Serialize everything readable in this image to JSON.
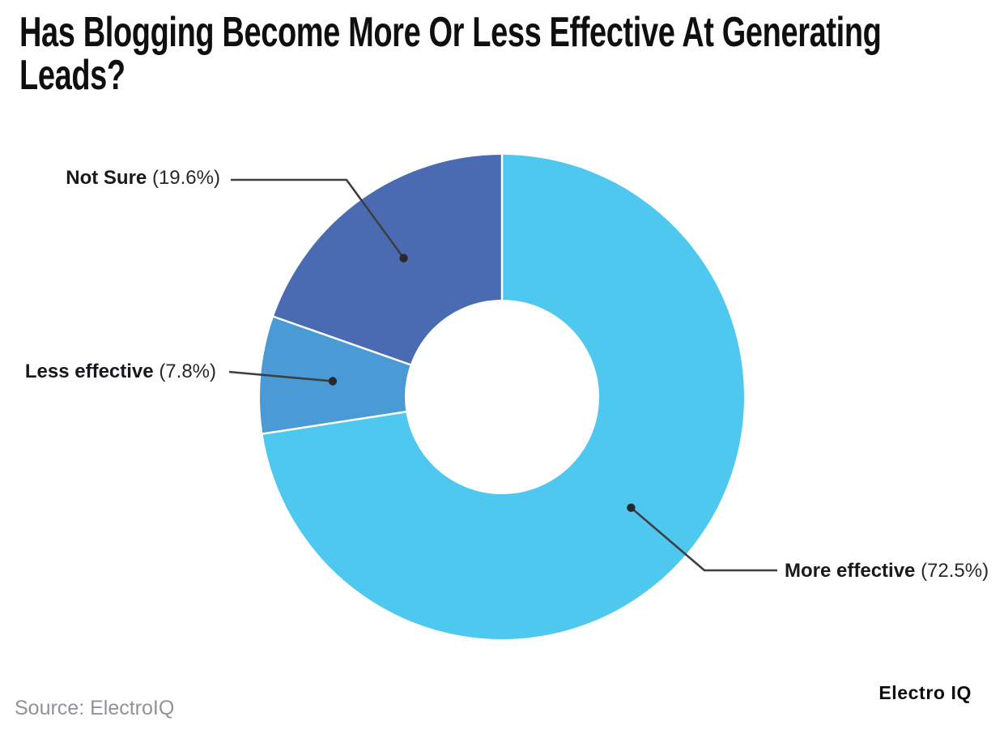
{
  "title_lines": [
    "Has Blogging Become More Or Less Effective At Generating",
    "Leads?"
  ],
  "source_note": "Source: ElectroIQ",
  "brand_logo": "Electro IQ",
  "chart_data": {
    "type": "pie",
    "subtype": "donut",
    "title": "Has Blogging Become More Or Less Effective At Generating Leads?",
    "unit": "%",
    "categories": [
      "More effective",
      "Less effective",
      "Not Sure"
    ],
    "values": [
      72.5,
      7.8,
      19.6
    ],
    "slices": [
      {
        "label": "More effective",
        "value": 72.5,
        "display": "(72.5%)",
        "color": "#4FC8F0"
      },
      {
        "label": "Less effective",
        "value": 7.8,
        "display": "(7.8%)",
        "color": "#4A9AD6"
      },
      {
        "label": "Not Sure",
        "value": 19.6,
        "display": "(19.6%)",
        "color": "#4A6BB2"
      }
    ],
    "start_angle_deg": 0,
    "direction": "clockwise",
    "inner_radius_ratio": 0.4,
    "legend_position": "callout-labels",
    "grid": false,
    "colors": {
      "leader_line": "#3d3f41",
      "dot": "#28292b",
      "separator": "#ffffff",
      "background": "#ffffff"
    }
  }
}
